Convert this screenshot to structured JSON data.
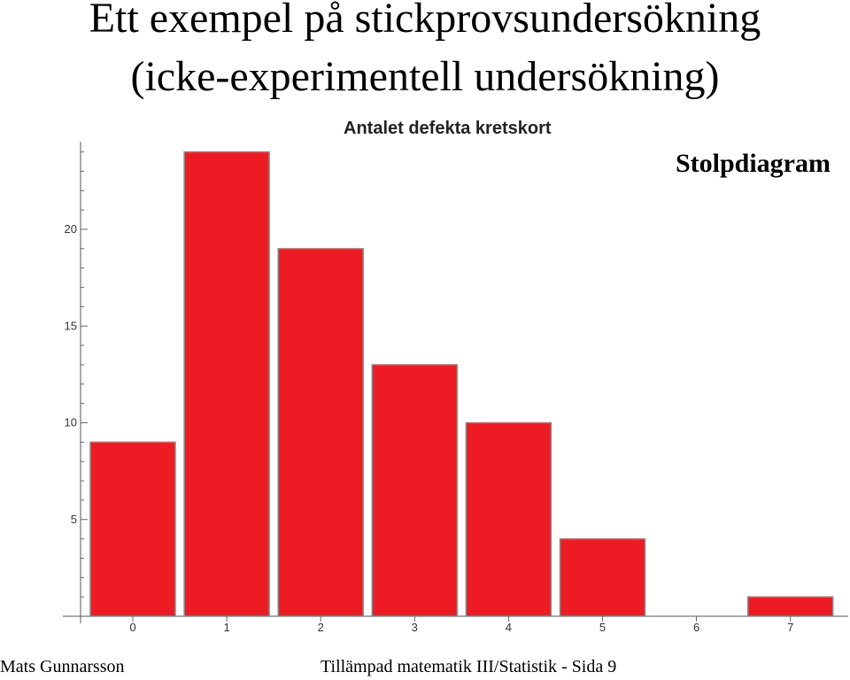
{
  "slide": {
    "title_line1": "Ett exempel på stickprovsundersökning",
    "title_line2": "(icke-experimentell undersökning)",
    "annotation": "Stolpdiagram",
    "footer_left": "Mats Gunnarsson",
    "footer_right": "Tillämpad matematik III/Statistik -  Sida 9"
  },
  "chart_data": {
    "type": "bar",
    "title": "Antalet defekta kretskort",
    "categories": [
      "0",
      "1",
      "2",
      "3",
      "4",
      "5",
      "6",
      "7"
    ],
    "values": [
      9,
      24,
      19,
      13,
      10,
      4,
      0,
      1
    ],
    "yticks": [
      5,
      10,
      15,
      20
    ],
    "ylim": [
      0,
      24.5
    ],
    "xlabel": "",
    "ylabel": "",
    "grid": false,
    "bar_color": "#ed1c24"
  }
}
